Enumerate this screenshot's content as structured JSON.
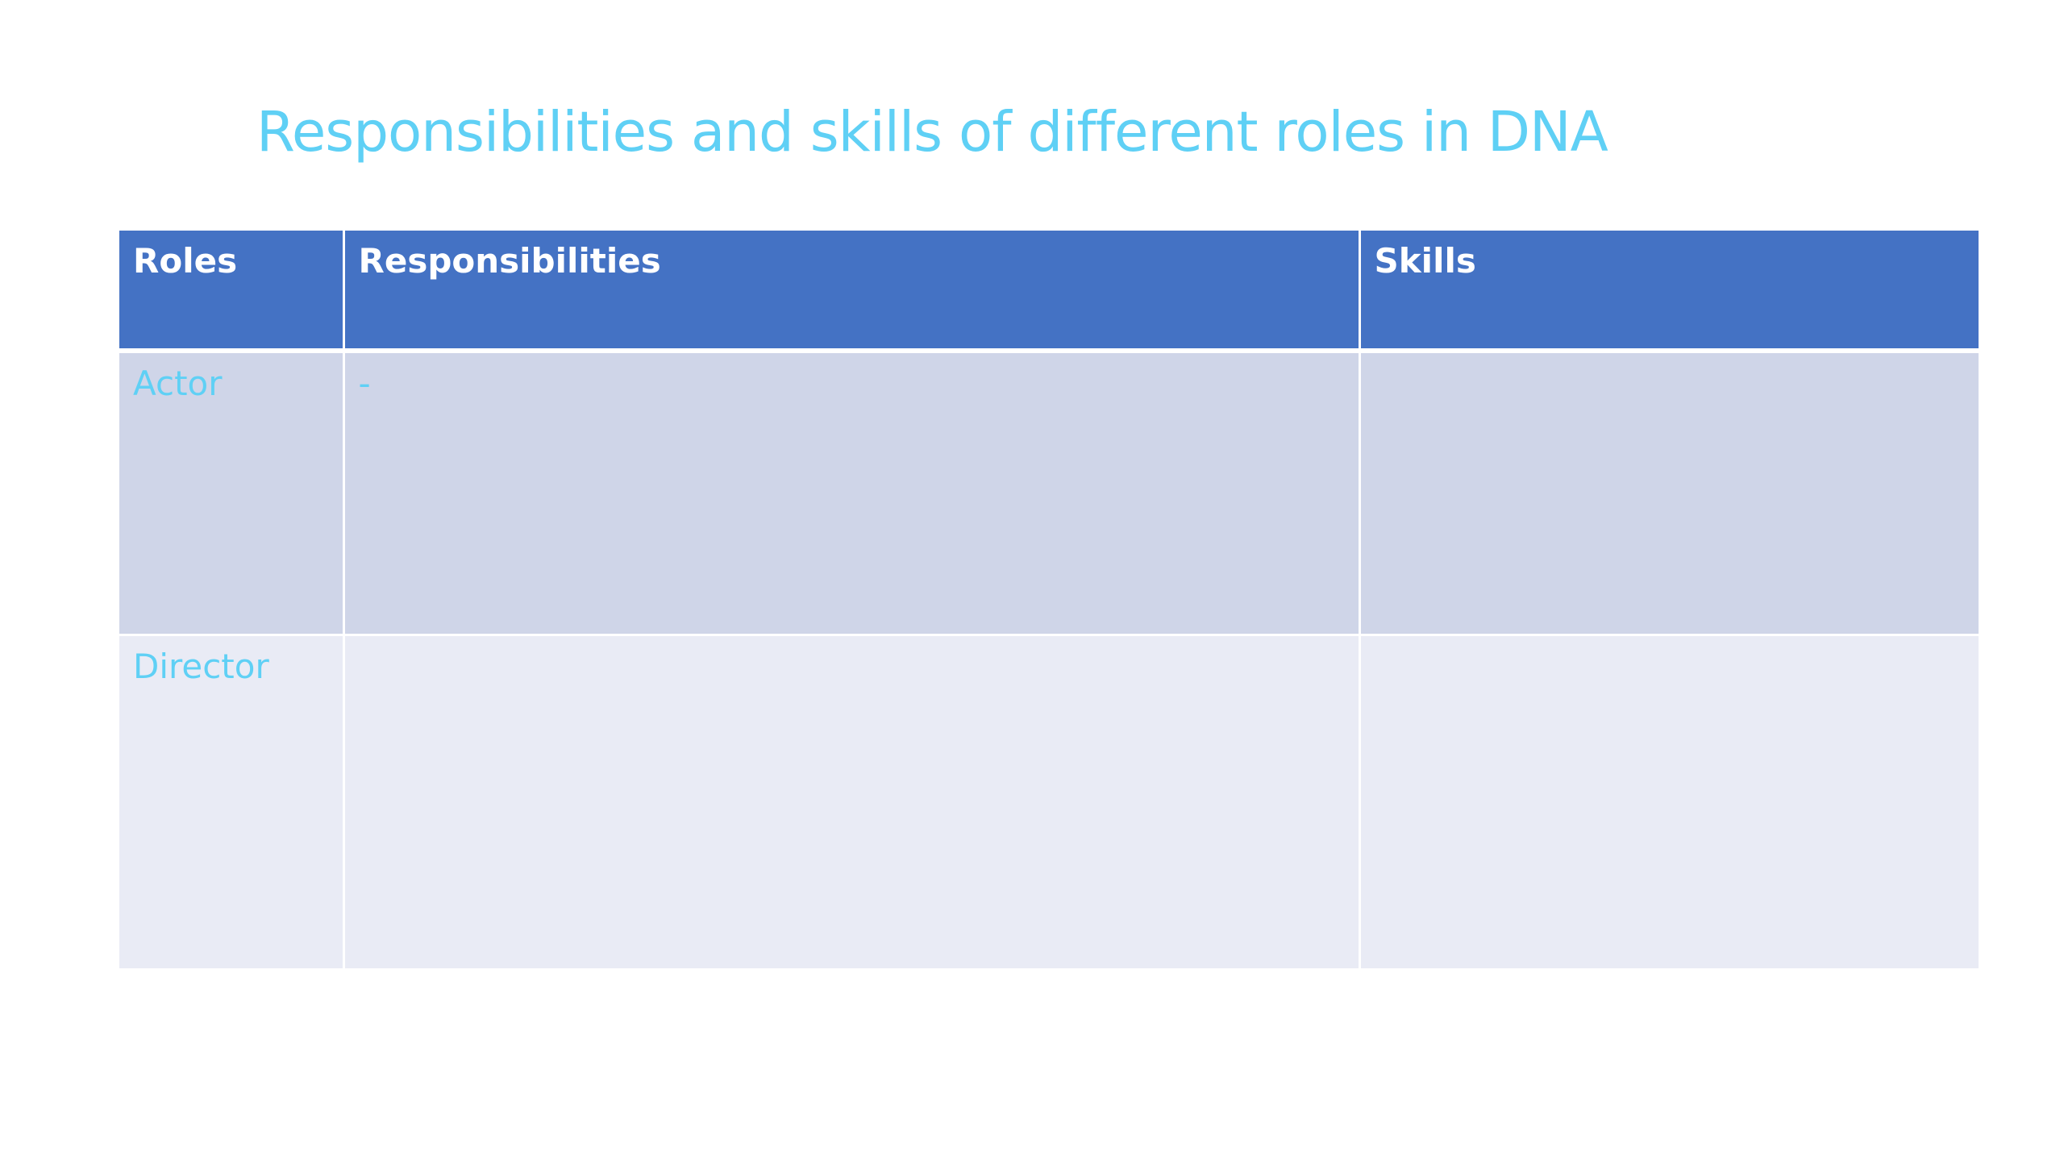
{
  "slide": {
    "title": "Responsibilities and skills of different roles in DNA"
  },
  "table": {
    "headers": [
      "Roles",
      "Responsibilities",
      "Skills"
    ],
    "rows": [
      {
        "role": "Actor",
        "responsibilities": "-",
        "skills": ""
      },
      {
        "role": "Director",
        "responsibilities": "",
        "skills": ""
      }
    ]
  },
  "colors": {
    "title": "#5fd0f5",
    "header_background": "#4472c4",
    "header_text": "#ffffff",
    "row_band_1": "#cfd5e8",
    "row_band_2": "#e9ebf5",
    "cell_text": "#5fd0f5"
  }
}
